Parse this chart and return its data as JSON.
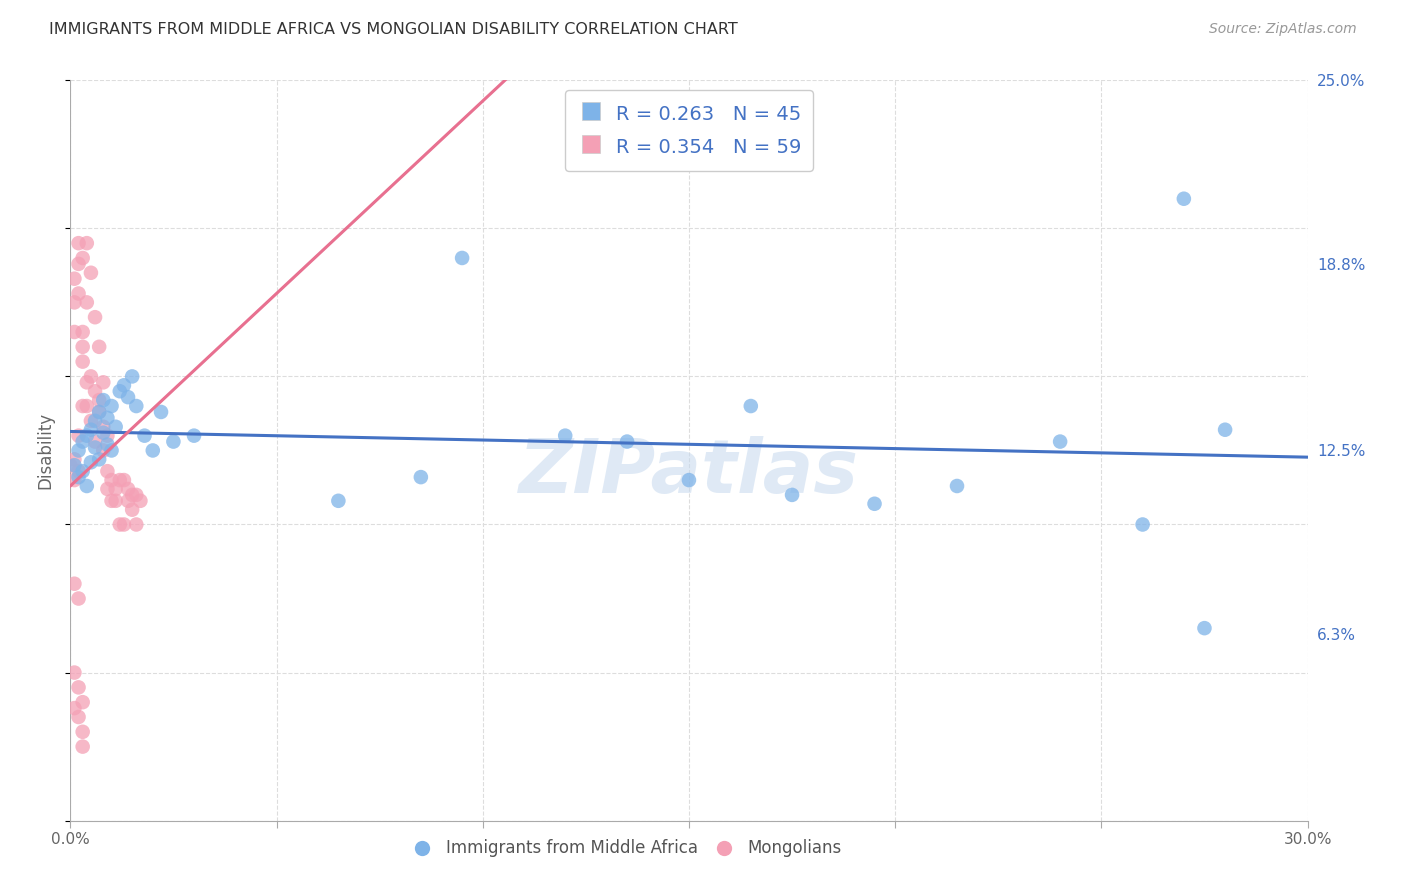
{
  "title": "IMMIGRANTS FROM MIDDLE AFRICA VS MONGOLIAN DISABILITY CORRELATION CHART",
  "source": "Source: ZipAtlas.com",
  "xlabel": "",
  "ylabel": "Disability",
  "xlim": [
    0.0,
    0.3
  ],
  "ylim": [
    0.0,
    0.25
  ],
  "xticks": [
    0.0,
    0.05,
    0.1,
    0.15,
    0.2,
    0.25,
    0.3
  ],
  "xtick_labels": [
    "0.0%",
    "",
    "",
    "",
    "",
    "",
    "30.0%"
  ],
  "ytick_labels_right": [
    "25.0%",
    "18.8%",
    "12.5%",
    "6.3%"
  ],
  "yticks_right": [
    0.25,
    0.188,
    0.125,
    0.063
  ],
  "grid_color": "#dddddd",
  "background_color": "#ffffff",
  "watermark": "ZIPatlas",
  "blue_color": "#7eb3e8",
  "pink_color": "#f4a0b5",
  "blue_line_color": "#4472c4",
  "pink_line_color": "#e87090",
  "pink_dash_color": "#d0a0b0",
  "legend_text_color": "#4472c4",
  "series1_name": "Immigrants from Middle Africa",
  "series2_name": "Mongolians",
  "blue_x": [
    0.001,
    0.002,
    0.002,
    0.003,
    0.003,
    0.004,
    0.004,
    0.005,
    0.005,
    0.006,
    0.006,
    0.007,
    0.007,
    0.008,
    0.008,
    0.009,
    0.009,
    0.01,
    0.01,
    0.011,
    0.012,
    0.013,
    0.014,
    0.015,
    0.016,
    0.018,
    0.02,
    0.022,
    0.025,
    0.03,
    0.065,
    0.085,
    0.095,
    0.12,
    0.135,
    0.15,
    0.165,
    0.175,
    0.195,
    0.215,
    0.24,
    0.26,
    0.27,
    0.275,
    0.28
  ],
  "blue_y": [
    0.12,
    0.116,
    0.125,
    0.118,
    0.128,
    0.113,
    0.13,
    0.121,
    0.132,
    0.126,
    0.135,
    0.122,
    0.138,
    0.131,
    0.142,
    0.127,
    0.136,
    0.125,
    0.14,
    0.133,
    0.145,
    0.147,
    0.143,
    0.15,
    0.14,
    0.13,
    0.125,
    0.138,
    0.128,
    0.13,
    0.108,
    0.116,
    0.19,
    0.13,
    0.128,
    0.115,
    0.14,
    0.11,
    0.107,
    0.113,
    0.128,
    0.1,
    0.21,
    0.065,
    0.132
  ],
  "pink_x": [
    0.0,
    0.001,
    0.001,
    0.001,
    0.001,
    0.001,
    0.002,
    0.002,
    0.002,
    0.002,
    0.002,
    0.003,
    0.003,
    0.003,
    0.003,
    0.003,
    0.004,
    0.004,
    0.004,
    0.004,
    0.005,
    0.005,
    0.005,
    0.006,
    0.006,
    0.006,
    0.007,
    0.007,
    0.007,
    0.008,
    0.008,
    0.008,
    0.009,
    0.009,
    0.009,
    0.01,
    0.01,
    0.011,
    0.011,
    0.012,
    0.012,
    0.013,
    0.013,
    0.014,
    0.014,
    0.015,
    0.015,
    0.016,
    0.016,
    0.017,
    0.001,
    0.002,
    0.003,
    0.001,
    0.002,
    0.001,
    0.002,
    0.003,
    0.003
  ],
  "pink_y": [
    0.12,
    0.183,
    0.175,
    0.122,
    0.115,
    0.165,
    0.188,
    0.178,
    0.13,
    0.118,
    0.195,
    0.165,
    0.19,
    0.155,
    0.16,
    0.14,
    0.195,
    0.14,
    0.148,
    0.175,
    0.185,
    0.135,
    0.15,
    0.17,
    0.128,
    0.145,
    0.138,
    0.16,
    0.142,
    0.125,
    0.133,
    0.148,
    0.118,
    0.13,
    0.112,
    0.115,
    0.108,
    0.112,
    0.108,
    0.115,
    0.1,
    0.115,
    0.1,
    0.108,
    0.112,
    0.11,
    0.105,
    0.11,
    0.1,
    0.108,
    0.038,
    0.035,
    0.03,
    0.05,
    0.045,
    0.08,
    0.075,
    0.025,
    0.04
  ]
}
